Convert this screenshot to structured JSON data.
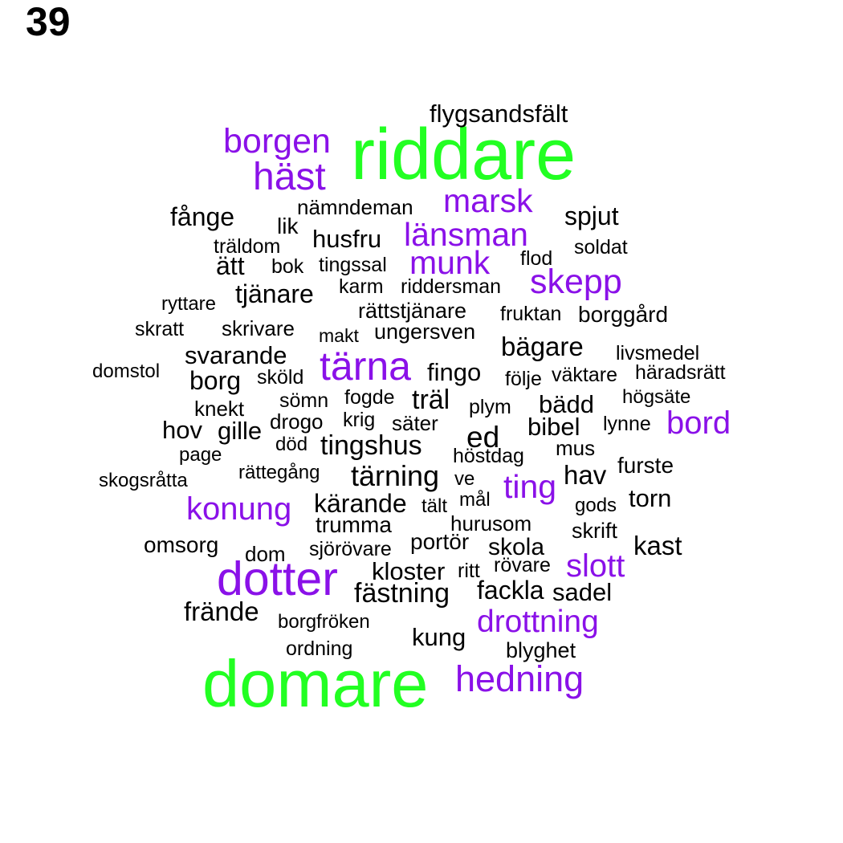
{
  "page_number": "39",
  "colors": {
    "large": "#22ff22",
    "medium": "#8a11e8",
    "small": "#000000"
  },
  "words": [
    {
      "text": "riddare",
      "level": "large"
    },
    {
      "text": "domare",
      "level": "large"
    },
    {
      "text": "borgen",
      "level": "medium"
    },
    {
      "text": "häst",
      "level": "medium"
    },
    {
      "text": "marsk",
      "level": "medium"
    },
    {
      "text": "länsman",
      "level": "medium"
    },
    {
      "text": "munk",
      "level": "medium"
    },
    {
      "text": "skepp",
      "level": "medium"
    },
    {
      "text": "tärna",
      "level": "medium"
    },
    {
      "text": "bord",
      "level": "medium"
    },
    {
      "text": "ting",
      "level": "medium"
    },
    {
      "text": "konung",
      "level": "medium"
    },
    {
      "text": "dotter",
      "level": "medium"
    },
    {
      "text": "slott",
      "level": "medium"
    },
    {
      "text": "drottning",
      "level": "medium"
    },
    {
      "text": "hedning",
      "level": "medium"
    },
    {
      "text": "flygsandsfält",
      "level": "small"
    },
    {
      "text": "nämndeman",
      "level": "small"
    },
    {
      "text": "fånge",
      "level": "small"
    },
    {
      "text": "spjut",
      "level": "small"
    },
    {
      "text": "lik",
      "level": "small"
    },
    {
      "text": "husfru",
      "level": "small"
    },
    {
      "text": "träldom",
      "level": "small"
    },
    {
      "text": "soldat",
      "level": "small"
    },
    {
      "text": "ätt",
      "level": "small"
    },
    {
      "text": "bok",
      "level": "small"
    },
    {
      "text": "tingssal",
      "level": "small"
    },
    {
      "text": "flod",
      "level": "small"
    },
    {
      "text": "tjänare",
      "level": "small"
    },
    {
      "text": "karm",
      "level": "small"
    },
    {
      "text": "riddersman",
      "level": "small"
    },
    {
      "text": "ryttare",
      "level": "small"
    },
    {
      "text": "rättstjänare",
      "level": "small"
    },
    {
      "text": "fruktan",
      "level": "small"
    },
    {
      "text": "borggård",
      "level": "small"
    },
    {
      "text": "skratt",
      "level": "small"
    },
    {
      "text": "skrivare",
      "level": "small"
    },
    {
      "text": "makt",
      "level": "small"
    },
    {
      "text": "ungersven",
      "level": "small"
    },
    {
      "text": "bägare",
      "level": "small"
    },
    {
      "text": "svarande",
      "level": "small"
    },
    {
      "text": "livsmedel",
      "level": "small"
    },
    {
      "text": "domstol",
      "level": "small"
    },
    {
      "text": "borg",
      "level": "small"
    },
    {
      "text": "sköld",
      "level": "small"
    },
    {
      "text": "fingo",
      "level": "small"
    },
    {
      "text": "följe",
      "level": "small"
    },
    {
      "text": "väktare",
      "level": "small"
    },
    {
      "text": "häradsrätt",
      "level": "small"
    },
    {
      "text": "fogde",
      "level": "small"
    },
    {
      "text": "träl",
      "level": "small"
    },
    {
      "text": "högsäte",
      "level": "small"
    },
    {
      "text": "knekt",
      "level": "small"
    },
    {
      "text": "sömn",
      "level": "small"
    },
    {
      "text": "bädd",
      "level": "small"
    },
    {
      "text": "plym",
      "level": "small"
    },
    {
      "text": "drogo",
      "level": "small"
    },
    {
      "text": "krig",
      "level": "small"
    },
    {
      "text": "säter",
      "level": "small"
    },
    {
      "text": "bibel",
      "level": "small"
    },
    {
      "text": "lynne",
      "level": "small"
    },
    {
      "text": "hov",
      "level": "small"
    },
    {
      "text": "gille",
      "level": "small"
    },
    {
      "text": "ed",
      "level": "small"
    },
    {
      "text": "död",
      "level": "small"
    },
    {
      "text": "tingshus",
      "level": "small"
    },
    {
      "text": "mus",
      "level": "small"
    },
    {
      "text": "page",
      "level": "small"
    },
    {
      "text": "höstdag",
      "level": "small"
    },
    {
      "text": "furste",
      "level": "small"
    },
    {
      "text": "rättegång",
      "level": "small"
    },
    {
      "text": "tärning",
      "level": "small"
    },
    {
      "text": "hav",
      "level": "small"
    },
    {
      "text": "skogsråtta",
      "level": "small"
    },
    {
      "text": "ve",
      "level": "small"
    },
    {
      "text": "kärande",
      "level": "small"
    },
    {
      "text": "tält",
      "level": "small"
    },
    {
      "text": "mål",
      "level": "small"
    },
    {
      "text": "gods",
      "level": "small"
    },
    {
      "text": "torn",
      "level": "small"
    },
    {
      "text": "trumma",
      "level": "small"
    },
    {
      "text": "hurusom",
      "level": "small"
    },
    {
      "text": "skrift",
      "level": "small"
    },
    {
      "text": "omsorg",
      "level": "small"
    },
    {
      "text": "portör",
      "level": "small"
    },
    {
      "text": "dom",
      "level": "small"
    },
    {
      "text": "sjörövare",
      "level": "small"
    },
    {
      "text": "skola",
      "level": "small"
    },
    {
      "text": "kast",
      "level": "small"
    },
    {
      "text": "rövare",
      "level": "small"
    },
    {
      "text": "kloster",
      "level": "small"
    },
    {
      "text": "ritt",
      "level": "small"
    },
    {
      "text": "fästning",
      "level": "small"
    },
    {
      "text": "fackla",
      "level": "small"
    },
    {
      "text": "sadel",
      "level": "small"
    },
    {
      "text": "frände",
      "level": "small"
    },
    {
      "text": "borgfröken",
      "level": "small"
    },
    {
      "text": "kung",
      "level": "small"
    },
    {
      "text": "ordning",
      "level": "small"
    },
    {
      "text": "blyghet",
      "level": "small"
    }
  ]
}
